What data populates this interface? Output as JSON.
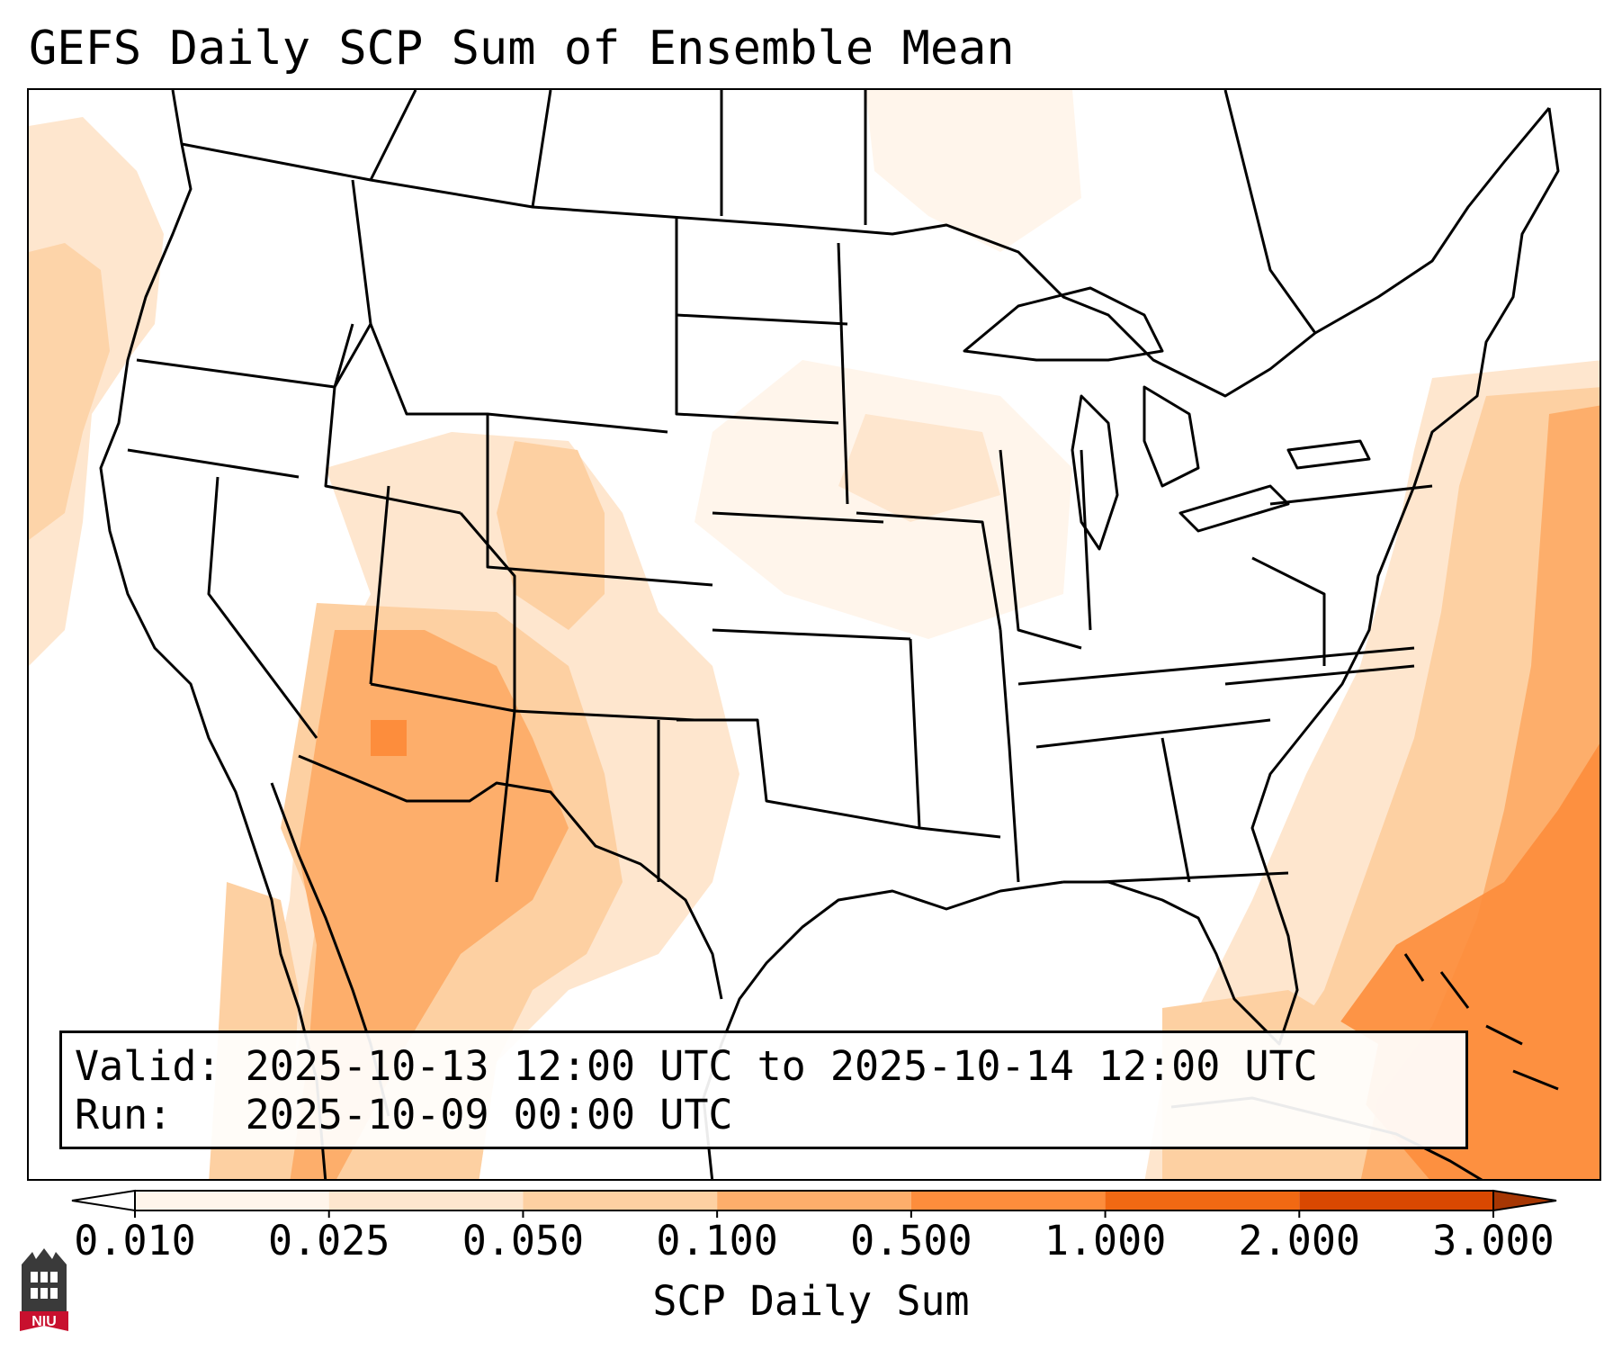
{
  "title": "GEFS Daily SCP Sum of Ensemble Mean",
  "info": {
    "valid_label": "Valid:",
    "valid_text": "2025-10-13 12:00 UTC to 2025-10-14 12:00 UTC",
    "run_label": "Run:",
    "run_text": "2025-10-09 00:00 UTC"
  },
  "colorbar": {
    "label": "SCP Daily Sum",
    "ticks": [
      "0.010",
      "0.025",
      "0.050",
      "0.100",
      "0.500",
      "1.000",
      "2.000",
      "3.000"
    ],
    "colors": [
      "#fff5eb",
      "#fee6ce",
      "#fdd0a2",
      "#fdae6b",
      "#fd8d3c",
      "#f16913",
      "#d94801"
    ],
    "under_color": "#ffffff",
    "over_color": "#a63603",
    "extend": "both"
  },
  "logo": {
    "text": "NIU",
    "colors": {
      "tower": "#3a3a3a",
      "banner": "#c8102e"
    }
  }
}
